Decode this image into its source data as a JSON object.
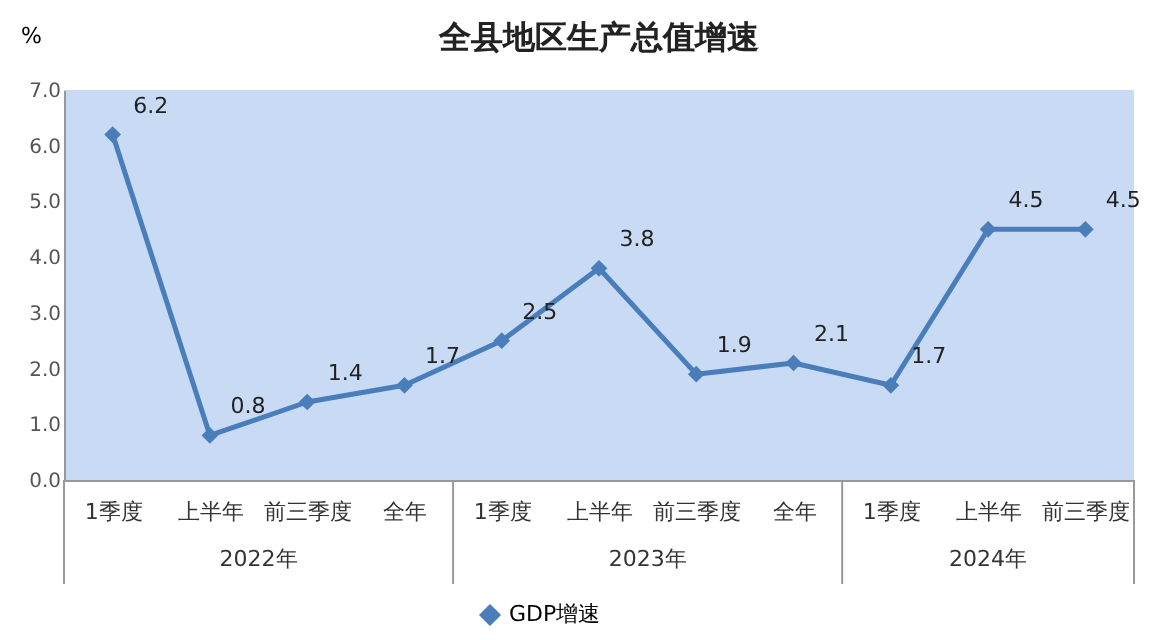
{
  "chart_data": {
    "type": "line",
    "title": "全县地区生产总值增速",
    "ylabel": "%",
    "categories": [
      "1季度",
      "上半年",
      "前三季度",
      "全年",
      "1季度",
      "上半年",
      "前三季度",
      "全年",
      "1季度",
      "上半年",
      "前三季度"
    ],
    "series": [
      {
        "name": "GDP增速",
        "color": "#4a7ebb",
        "values": [
          6.2,
          0.8,
          1.4,
          1.7,
          2.5,
          3.8,
          1.9,
          2.1,
          1.7,
          4.5,
          4.5
        ]
      }
    ],
    "annotations": [
      "2022年",
      "2023年",
      "2024年"
    ],
    "ylim": [
      0,
      7
    ],
    "yticks": [
      {
        "value": 0,
        "label": "0.0"
      },
      {
        "value": 1,
        "label": "1.0"
      },
      {
        "value": 2,
        "label": "2.0"
      },
      {
        "value": 3,
        "label": "3.0"
      },
      {
        "value": 4,
        "label": "4.0"
      },
      {
        "value": 5,
        "label": "5.0"
      },
      {
        "value": 6,
        "label": "6.0"
      },
      {
        "value": 7,
        "label": "7.0"
      }
    ],
    "data_labels": true,
    "marker": "diamond",
    "line_style": "solid",
    "grid": false,
    "legend": "bottom"
  }
}
